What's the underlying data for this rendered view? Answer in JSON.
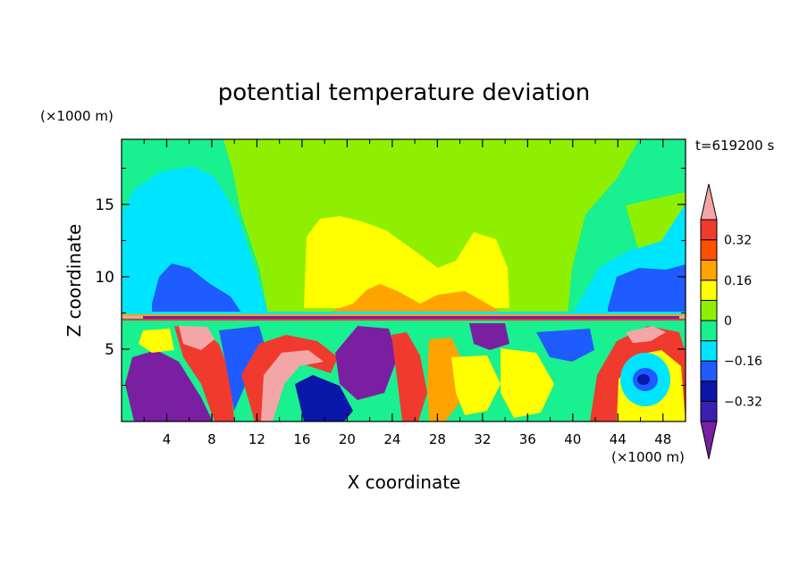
{
  "chart_data": {
    "type": "heatmap",
    "title": "potential temperature deviation",
    "time_label": "t=619200 s",
    "xlabel": "X coordinate",
    "ylabel": "Z coordinate",
    "x_unit_label": "(×1000 m)",
    "y_unit_label": "(×1000 m)",
    "xlim": [
      0,
      50
    ],
    "ylim": [
      0,
      19.5
    ],
    "x_ticks": [
      4,
      8,
      12,
      16,
      20,
      24,
      28,
      32,
      36,
      40,
      44,
      48
    ],
    "x_tick_labels": [
      "4",
      "8",
      "12",
      "16",
      "20",
      "24",
      "28",
      "32",
      "36",
      "40",
      "44",
      "48"
    ],
    "y_ticks": [
      5,
      10,
      15
    ],
    "y_tick_labels": [
      "5",
      "10",
      "15"
    ],
    "colorbar": {
      "levels": [
        -0.4,
        -0.32,
        -0.24,
        -0.16,
        -0.08,
        0,
        0.08,
        0.16,
        0.24,
        0.32,
        0.4
      ],
      "tick_values": [
        -0.32,
        -0.16,
        0,
        0.16,
        0.32
      ],
      "tick_labels": [
        "−0.32",
        "−0.16",
        "0",
        "0.16",
        "0.32"
      ],
      "colors_low_to_high": [
        "#7b1fa2",
        "#3a1fb3",
        "#0a17a8",
        "#1e5cff",
        "#00e5ff",
        "#19f08f",
        "#8ef000",
        "#ffff00",
        "#ffa300",
        "#ff5000",
        "#f03a2e",
        "#f4a6a6"
      ],
      "extend": "both"
    }
  }
}
